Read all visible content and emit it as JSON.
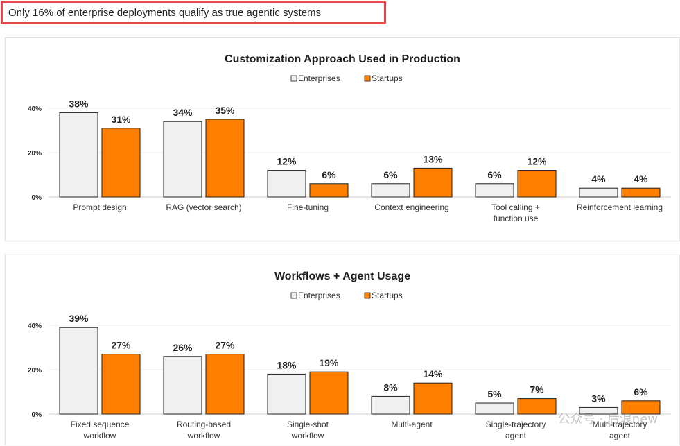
{
  "headline": "Only 16% of enterprise deployments qualify as true agentic systems",
  "colors": {
    "enterprises": "#f0f0f0",
    "startups": "#ff7f00",
    "bar_stroke": "#1f1f1f",
    "highlight_border": "#e5484d"
  },
  "watermark": "公众号 · 后浪new",
  "chart_data": [
    {
      "type": "bar",
      "title": "Customization Approach Used in Production",
      "legend": [
        "Enterprises",
        "Startups"
      ],
      "legend_position": "top-center",
      "categories": [
        [
          "Prompt design"
        ],
        [
          "RAG (vector search)"
        ],
        [
          "Fine-tuning"
        ],
        [
          "Context engineering"
        ],
        [
          "Tool calling +",
          "function use"
        ],
        [
          "Reinforcement learning"
        ]
      ],
      "series": [
        {
          "name": "Enterprises",
          "values": [
            38,
            34,
            12,
            6,
            6,
            4
          ]
        },
        {
          "name": "Startups",
          "values": [
            31,
            35,
            6,
            13,
            12,
            4
          ]
        }
      ],
      "yticks": [
        "0%",
        "20%",
        "40%"
      ],
      "ylim": [
        0,
        40
      ],
      "grid": true,
      "value_suffix": "%"
    },
    {
      "type": "bar",
      "title": "Workflows + Agent Usage",
      "legend": [
        "Enterprises",
        "Startups"
      ],
      "legend_position": "top-center",
      "categories": [
        [
          "Fixed sequence",
          "workflow"
        ],
        [
          "Routing-based",
          "workflow"
        ],
        [
          "Single-shot",
          "workflow"
        ],
        [
          "Multi-agent"
        ],
        [
          "Single-trajectory",
          "agent"
        ],
        [
          "Multi-trajectory",
          "agent"
        ]
      ],
      "series": [
        {
          "name": "Enterprises",
          "values": [
            39,
            26,
            18,
            8,
            5,
            3
          ]
        },
        {
          "name": "Startups",
          "values": [
            27,
            27,
            19,
            14,
            7,
            6
          ]
        }
      ],
      "yticks": [
        "0%",
        "20%",
        "40%"
      ],
      "ylim": [
        0,
        40
      ],
      "grid": true,
      "value_suffix": "%"
    }
  ]
}
